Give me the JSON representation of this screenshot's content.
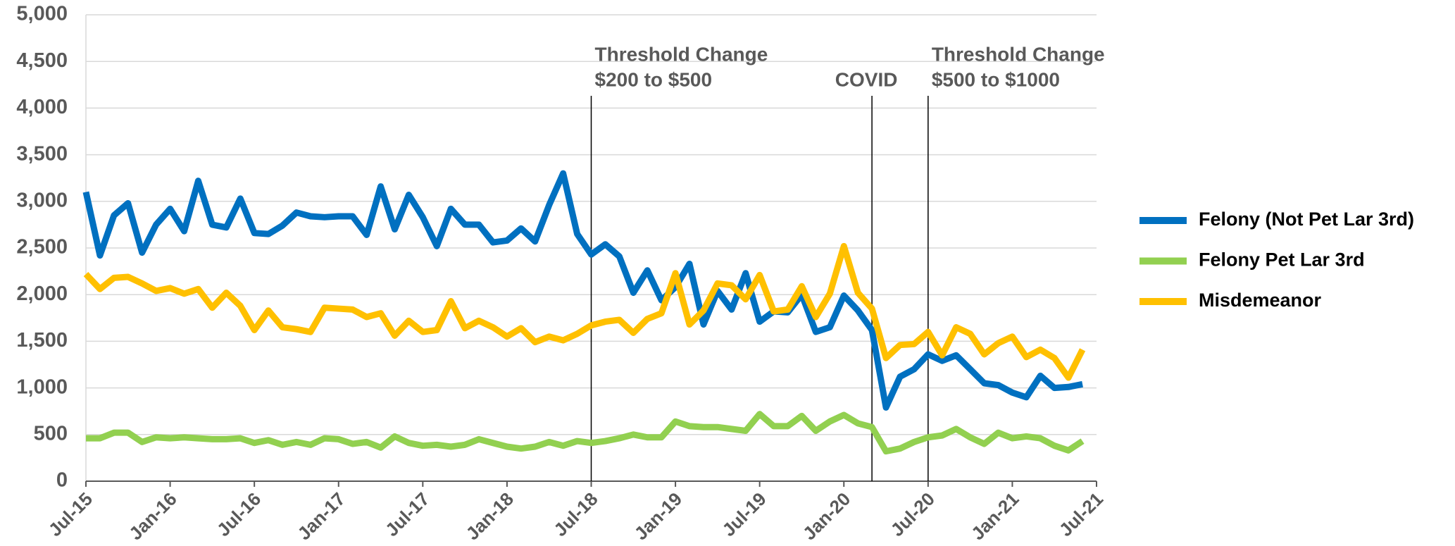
{
  "chart_data": {
    "type": "line",
    "x": [
      0,
      1,
      2,
      3,
      4,
      5,
      6,
      7,
      8,
      9,
      10,
      11,
      12,
      13,
      14,
      15,
      16,
      17,
      18,
      19,
      20,
      21,
      22,
      23,
      24,
      25,
      26,
      27,
      28,
      29,
      30,
      31,
      32,
      33,
      34,
      35,
      36,
      37,
      38,
      39,
      40,
      41,
      42,
      43,
      44,
      45,
      46,
      47,
      48,
      49,
      50,
      51,
      52,
      53,
      54,
      55,
      56,
      57,
      58,
      59,
      60,
      61,
      62,
      63,
      64,
      65,
      66,
      67,
      68,
      69,
      70,
      71
    ],
    "xlim": [
      0,
      72
    ],
    "xticks": [
      {
        "value": 0,
        "label": "Jul-15"
      },
      {
        "value": 6,
        "label": "Jan-16"
      },
      {
        "value": 12,
        "label": "Jul-16"
      },
      {
        "value": 18,
        "label": "Jan-17"
      },
      {
        "value": 24,
        "label": "Jul-17"
      },
      {
        "value": 30,
        "label": "Jan-18"
      },
      {
        "value": 36,
        "label": "Jul-18"
      },
      {
        "value": 42,
        "label": "Jan-19"
      },
      {
        "value": 48,
        "label": "Jul-19"
      },
      {
        "value": 54,
        "label": "Jan-20"
      },
      {
        "value": 60,
        "label": "Jul-20"
      },
      {
        "value": 66,
        "label": "Jan-21"
      },
      {
        "value": 72,
        "label": "Jul-21"
      }
    ],
    "ylim": [
      0,
      5000
    ],
    "yticks": [
      0,
      {
        "value": 500,
        "label": "500"
      },
      {
        "value": 1000,
        "label": "1,000"
      },
      {
        "value": 1500,
        "label": "1,500"
      },
      {
        "value": 2000,
        "label": "2,000"
      },
      {
        "value": 2500,
        "label": "2,500"
      },
      {
        "value": 3000,
        "label": "3,000"
      },
      {
        "value": 3500,
        "label": "3,500"
      },
      {
        "value": 4000,
        "label": "4,000"
      },
      {
        "value": 4500,
        "label": "4,500"
      },
      {
        "value": 5000,
        "label": "5,000"
      }
    ],
    "grid": true,
    "legend": "right",
    "series": [
      {
        "name": "Felony (Not Pet Lar 3rd)",
        "color": "#0070c0",
        "values": [
          3100,
          2420,
          2850,
          2980,
          2450,
          2750,
          2920,
          2680,
          3220,
          2750,
          2720,
          3030,
          2660,
          2650,
          2740,
          2880,
          2840,
          2830,
          2840,
          2840,
          2640,
          3160,
          2700,
          3070,
          2830,
          2520,
          2920,
          2750,
          2750,
          2560,
          2580,
          2710,
          2570,
          2960,
          3300,
          2650,
          2430,
          2540,
          2410,
          2020,
          2260,
          1940,
          2080,
          2330,
          1680,
          2040,
          1840,
          2230,
          1710,
          1820,
          1810,
          2000,
          1600,
          1650,
          1990,
          1830,
          1620,
          790,
          1120,
          1200,
          1360,
          1290,
          1350,
          1200,
          1050,
          1030,
          950,
          900,
          1130,
          1000,
          1010,
          1040
        ]
      },
      {
        "name": "Felony Pet Lar 3rd",
        "color": "#92d050",
        "values": [
          460,
          460,
          520,
          520,
          420,
          470,
          460,
          470,
          460,
          450,
          450,
          460,
          410,
          440,
          390,
          420,
          390,
          460,
          450,
          400,
          420,
          360,
          480,
          410,
          380,
          390,
          370,
          390,
          450,
          410,
          370,
          350,
          370,
          420,
          380,
          430,
          410,
          430,
          460,
          500,
          470,
          470,
          640,
          590,
          580,
          580,
          560,
          540,
          720,
          590,
          590,
          700,
          540,
          640,
          710,
          620,
          580,
          320,
          350,
          420,
          470,
          490,
          560,
          470,
          400,
          520,
          460,
          480,
          460,
          380,
          330,
          430
        ]
      },
      {
        "name": "Misdemeanor",
        "color": "#ffc000",
        "values": [
          2220,
          2060,
          2180,
          2190,
          2120,
          2040,
          2070,
          2010,
          2060,
          1860,
          2020,
          1880,
          1620,
          1830,
          1650,
          1630,
          1600,
          1860,
          1850,
          1840,
          1760,
          1800,
          1560,
          1720,
          1600,
          1620,
          1930,
          1640,
          1720,
          1650,
          1550,
          1640,
          1490,
          1550,
          1510,
          1580,
          1670,
          1710,
          1730,
          1590,
          1740,
          1800,
          2230,
          1680,
          1830,
          2120,
          2100,
          1950,
          2210,
          1820,
          1840,
          2090,
          1760,
          2010,
          2520,
          2020,
          1850,
          1320,
          1460,
          1470,
          1600,
          1350,
          1650,
          1580,
          1360,
          1480,
          1550,
          1330,
          1410,
          1320,
          1110,
          1410
        ]
      }
    ],
    "annotations": [
      {
        "x": 36,
        "text": [
          "Threshold Change",
          "$200 to $500"
        ]
      },
      {
        "x": 56,
        "text": [
          "COVID"
        ]
      },
      {
        "x": 60,
        "text": [
          "Threshold Change",
          "$500 to $1000"
        ]
      }
    ]
  }
}
